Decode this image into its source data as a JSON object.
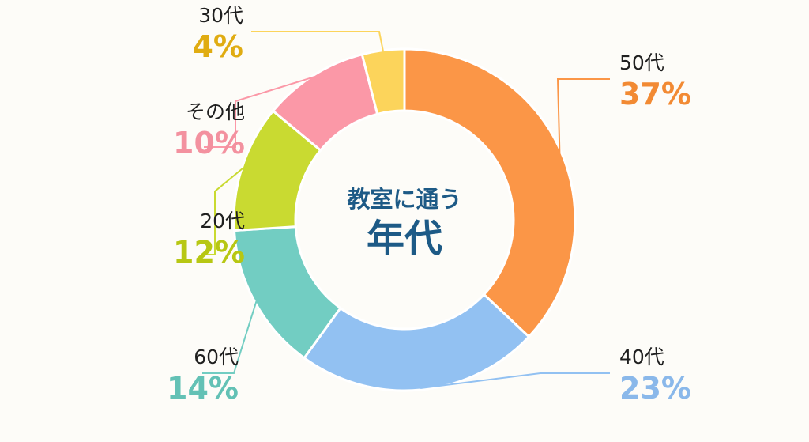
{
  "chart_data": {
    "type": "pie",
    "variant": "donut",
    "center_title_line1": "教室に通う",
    "center_title_line2": "年代",
    "slices": [
      {
        "label": "50代",
        "percent_text": "37%",
        "value": 37,
        "color": "#fb9647"
      },
      {
        "label": "40代",
        "percent_text": "23%",
        "value": 23,
        "color": "#92c1f2"
      },
      {
        "label": "60代",
        "percent_text": "14%",
        "value": 14,
        "color": "#72cdc2"
      },
      {
        "label": "20代",
        "percent_text": "12%",
        "value": 12,
        "color": "#c9da31"
      },
      {
        "label": "その他",
        "percent_text": "10%",
        "value": 10,
        "color": "#fb98a7"
      },
      {
        "label": "30代",
        "percent_text": "4%",
        "value": 4,
        "color": "#fcd45b"
      }
    ]
  },
  "label_colors": {
    "50代": "#f28a33",
    "40代": "#8ab8ea",
    "60代": "#63c1b5",
    "20代": "#b7c713",
    "その他": "#f3919f",
    "30代": "#e0ac12"
  }
}
